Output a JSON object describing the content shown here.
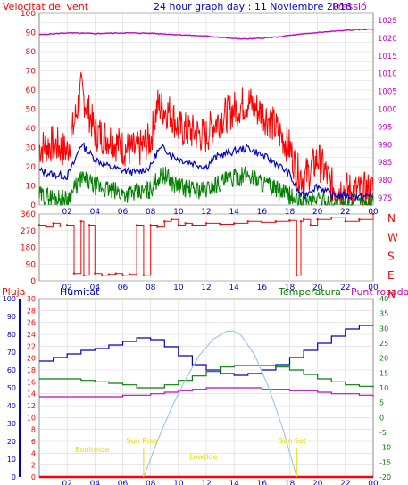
{
  "header": {
    "wind_title": "Velocitat del vent",
    "graph_title": "24 hour graph day : 11 Noviembre 2016",
    "pressure_title": "Pressió"
  },
  "lower_header": {
    "rain_label": "Pluja",
    "humidity_label": "Humitat",
    "temperature_label": "Temperatura",
    "dewpoint_label": "Punt rosada"
  },
  "colors": {
    "wind_gust": "#ff0000",
    "wind_avg": "#0000cc",
    "wind_min": "#008000",
    "pressure": "#cc00cc",
    "direction": "#ff0000",
    "humidity": "#0000cc",
    "temperature": "#008000",
    "dewpoint": "#cc00cc",
    "rain": "#ff0000",
    "sun": "#a0c8f0",
    "solar_labels": "#e0e000",
    "grid": "#d8d8d8",
    "frame": "#888888"
  },
  "chart_data": [
    {
      "type": "line",
      "name": "wind_pressure",
      "x_ticks": [
        "02",
        "04",
        "06",
        "08",
        "10",
        "12",
        "14",
        "16",
        "18",
        "20",
        "22",
        "00"
      ],
      "y_left_ticks": [
        0,
        5,
        10,
        15,
        20,
        25,
        30,
        35,
        40,
        45,
        50,
        55,
        60,
        65,
        70,
        75,
        80,
        85,
        90,
        95,
        100
      ],
      "y_left_range": [
        0,
        100
      ],
      "y_right_ticks": [
        975,
        980,
        985,
        990,
        995,
        1000,
        1005,
        1010,
        1015,
        1020,
        1025
      ],
      "y_right_range": [
        973,
        1027
      ],
      "grid": true,
      "series": [
        {
          "key": "gust",
          "hours": [
            0,
            1,
            2,
            2.5,
            3,
            3.5,
            4,
            5,
            6,
            7,
            8,
            8.5,
            9,
            9.5,
            10,
            11,
            12,
            12.5,
            13,
            14,
            15,
            16,
            16.5,
            17,
            18,
            18.5,
            19,
            19.5,
            20,
            20.5,
            21,
            22,
            23,
            24
          ],
          "values": [
            30,
            32,
            28,
            42,
            60,
            50,
            38,
            35,
            30,
            28,
            34,
            52,
            50,
            48,
            40,
            38,
            36,
            42,
            45,
            50,
            54,
            48,
            45,
            40,
            30,
            18,
            14,
            18,
            24,
            18,
            10,
            8,
            7,
            8
          ]
        },
        {
          "key": "average",
          "hours": [
            0,
            1,
            2,
            2.5,
            3,
            3.5,
            4,
            5,
            6,
            7,
            8,
            8.5,
            9,
            9.5,
            10,
            11,
            12,
            12.5,
            13,
            14,
            15,
            16,
            16.5,
            17,
            18,
            18.5,
            19,
            19.5,
            20,
            20.5,
            21,
            22,
            23,
            24
          ],
          "values": [
            18,
            16,
            15,
            22,
            32,
            28,
            24,
            20,
            18,
            17,
            20,
            28,
            30,
            26,
            24,
            22,
            20,
            24,
            26,
            28,
            30,
            26,
            24,
            22,
            16,
            8,
            4,
            8,
            10,
            8,
            5,
            5,
            4,
            5
          ]
        },
        {
          "key": "minimum",
          "hours": [
            0,
            1,
            2,
            2.5,
            3,
            3.5,
            4,
            5,
            6,
            7,
            8,
            8.5,
            9,
            9.5,
            10,
            11,
            12,
            12.5,
            13,
            14,
            15,
            16,
            16.5,
            17,
            18,
            18.5,
            19,
            19.5,
            20,
            20.5,
            21,
            22,
            23,
            24
          ],
          "values": [
            5,
            4,
            3,
            8,
            14,
            12,
            10,
            8,
            6,
            6,
            8,
            14,
            16,
            12,
            10,
            8,
            8,
            10,
            12,
            14,
            16,
            12,
            10,
            8,
            5,
            2,
            1,
            2,
            4,
            2,
            1,
            1,
            1,
            1
          ]
        },
        {
          "key": "pressure",
          "hours": [
            0,
            2,
            4,
            6,
            8,
            10,
            12,
            13,
            14,
            15,
            16,
            17,
            18,
            20,
            22,
            24
          ],
          "values": [
            1021,
            1021.5,
            1021.3,
            1021.5,
            1021.4,
            1021.0,
            1020.6,
            1020.3,
            1019.9,
            1019.8,
            1020.0,
            1020.3,
            1020.8,
            1021.6,
            1022.2,
            1022.6
          ]
        }
      ]
    },
    {
      "type": "scatter",
      "name": "wind_direction",
      "x_ticks": [
        "02",
        "04",
        "06",
        "08",
        "10",
        "12",
        "14",
        "16",
        "18",
        "20",
        "22",
        "00"
      ],
      "y_left_ticks": [
        0,
        90,
        180,
        270,
        360
      ],
      "y_range": [
        0,
        360
      ],
      "y_right_labels": [
        "N",
        "W",
        "S",
        "E",
        "N"
      ],
      "grid": true,
      "series": [
        {
          "key": "direction",
          "hours": [
            0,
            0.5,
            1,
            1.5,
            2,
            2.5,
            3,
            3.2,
            3.6,
            4,
            4.5,
            5,
            5.5,
            6,
            6.5,
            7,
            7.5,
            8,
            8.5,
            9,
            9.5,
            10,
            10.5,
            11,
            12,
            13,
            14,
            15,
            16,
            17,
            18,
            18.5,
            18.8,
            19,
            19.5,
            20,
            21,
            22,
            23,
            24
          ],
          "values": [
            300,
            290,
            310,
            295,
            300,
            40,
            320,
            30,
            300,
            40,
            30,
            35,
            40,
            30,
            35,
            300,
            30,
            300,
            290,
            320,
            330,
            300,
            310,
            300,
            310,
            305,
            310,
            320,
            315,
            320,
            325,
            30,
            320,
            330,
            300,
            330,
            340,
            320,
            330,
            360
          ]
        }
      ]
    },
    {
      "type": "line",
      "name": "humidity_temperature_dewpoint",
      "x_ticks": [
        "02",
        "04",
        "06",
        "08",
        "10",
        "12",
        "14",
        "16",
        "18",
        "20",
        "22",
        "00"
      ],
      "y_left1_ticks": [
        0,
        10,
        20,
        30,
        40,
        50,
        60,
        70,
        80,
        90,
        100
      ],
      "y_left1_range": [
        0,
        100
      ],
      "y_left2_ticks": [
        0,
        2,
        4,
        6,
        8,
        10,
        12,
        14,
        16,
        18,
        20,
        22,
        24,
        26,
        28,
        30
      ],
      "y_left2_range": [
        0,
        30
      ],
      "y_right_ticks": [
        -20,
        -15,
        -10,
        -5,
        0,
        5,
        10,
        15,
        20,
        25,
        30,
        35,
        40
      ],
      "y_right_range": [
        -20,
        40
      ],
      "grid": true,
      "solar_annotations": [
        "Sun Rise",
        "Sun Set",
        "Boniteide",
        "Lowtide"
      ],
      "series": [
        {
          "key": "humidity",
          "hours": [
            0,
            1,
            2,
            3,
            4,
            5,
            6,
            7,
            8,
            9,
            10,
            11,
            12,
            13,
            14,
            15,
            16,
            17,
            18,
            19,
            20,
            21,
            22,
            23,
            24
          ],
          "values": [
            65,
            67,
            69,
            71,
            72,
            74,
            76,
            78,
            77,
            73,
            68,
            63,
            60,
            58,
            57,
            58,
            60,
            63,
            67,
            71,
            75,
            79,
            83,
            85,
            85
          ]
        },
        {
          "key": "temperature",
          "hours": [
            0,
            1,
            2,
            3,
            4,
            5,
            6,
            7,
            8,
            9,
            10,
            11,
            12,
            13,
            14,
            15,
            16,
            17,
            18,
            19,
            20,
            21,
            22,
            23,
            24
          ],
          "values": [
            13,
            13,
            13,
            12.5,
            12,
            11.5,
            11,
            10,
            10,
            11,
            12.5,
            14,
            15.5,
            17,
            17.5,
            17.5,
            17.5,
            17,
            16,
            14.5,
            13,
            12,
            11,
            10.5,
            10
          ]
        },
        {
          "key": "dewpoint",
          "hours": [
            0,
            1,
            2,
            3,
            4,
            5,
            6,
            7,
            8,
            9,
            10,
            11,
            12,
            13,
            14,
            15,
            16,
            17,
            18,
            19,
            20,
            21,
            22,
            23,
            24
          ],
          "values": [
            7,
            7,
            7,
            7,
            7,
            7,
            7.5,
            7.5,
            8,
            8.5,
            9,
            9.5,
            10,
            10,
            10,
            10,
            9.5,
            9.5,
            9,
            9,
            8.5,
            8,
            8,
            7.5,
            7
          ]
        },
        {
          "key": "sun_elevation",
          "hours": [
            7.5,
            8.5,
            9.5,
            10.5,
            11.5,
            12.5,
            13.5,
            14,
            14.5,
            15.5,
            16.5,
            17.5,
            18.5
          ],
          "values": [
            0,
            9,
            17,
            24,
            30,
            34,
            36,
            36,
            35,
            30,
            22,
            12,
            0
          ]
        },
        {
          "key": "rain",
          "hours": [
            0,
            24
          ],
          "values": [
            0,
            0
          ]
        }
      ]
    }
  ]
}
